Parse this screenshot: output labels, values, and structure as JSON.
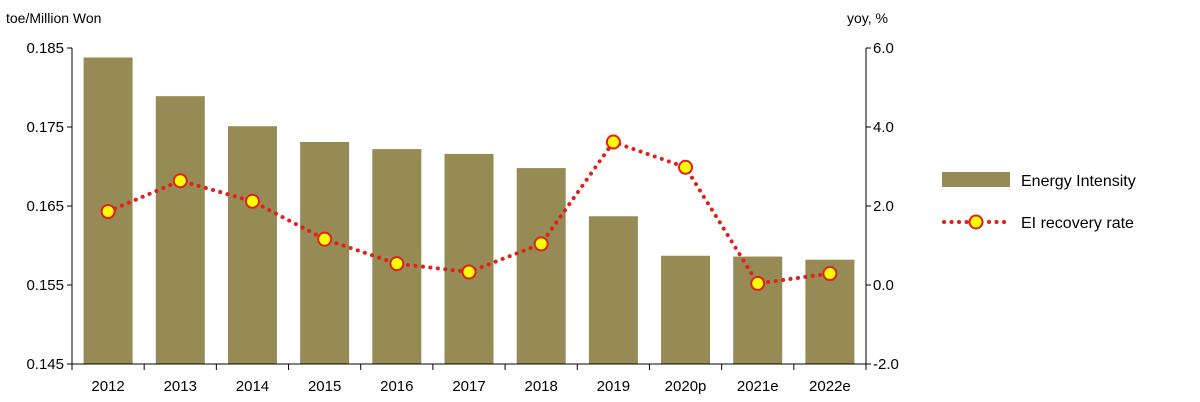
{
  "chart_data": {
    "type": "bar",
    "categories": [
      "2012",
      "2013",
      "2014",
      "2015",
      "2016",
      "2017",
      "2018",
      "2019",
      "2020p",
      "2021e",
      "2022e"
    ],
    "series": [
      {
        "name": "Energy Intensity",
        "type": "bar",
        "axis": "left",
        "color": "#968A55",
        "values": [
          0.1838,
          0.1789,
          0.1751,
          0.1731,
          0.1722,
          0.1716,
          0.1698,
          0.1637,
          0.1587,
          0.1586,
          0.1582
        ]
      },
      {
        "name": "EI recovery rate",
        "type": "line",
        "axis": "right",
        "color": "#E0201B",
        "marker_fill": "#FFFF00",
        "values": [
          1.86,
          2.64,
          2.12,
          1.16,
          0.54,
          0.33,
          1.04,
          3.62,
          2.98,
          0.04,
          0.29
        ]
      }
    ],
    "ylabel_left": "toe/Million Won",
    "ylabel_right": "yoy, %",
    "ylim_left": [
      0.145,
      0.185
    ],
    "yticks_left": [
      "0.145",
      "0.155",
      "0.165",
      "0.175",
      "0.185"
    ],
    "ylim_right": [
      -2,
      6
    ],
    "yticks_right": [
      "-2.0",
      "0.0",
      "2.0",
      "4.0",
      "6.0"
    ],
    "grid": false,
    "legend_position": "right"
  }
}
